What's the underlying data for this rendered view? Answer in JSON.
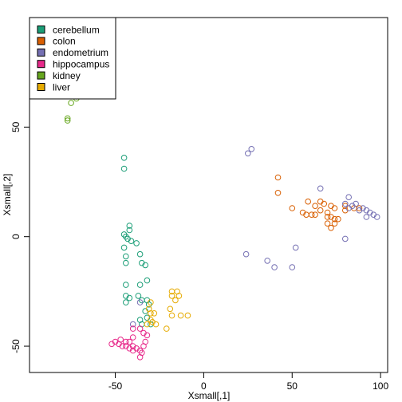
{
  "chart_data": {
    "type": "scatter",
    "xlabel": "Xsmall[,1]",
    "ylabel": "Xsmall[,2]",
    "xlim": [
      -98.5,
      104
    ],
    "ylim": [
      -62,
      100
    ],
    "x_ticks": [
      -50,
      0,
      50,
      100
    ],
    "y_ticks": [
      -50,
      0,
      50
    ],
    "x_tick_labels": [
      "-50",
      "0",
      "50",
      "100"
    ],
    "y_tick_labels": [
      "-50",
      "0",
      "50"
    ],
    "grid": false,
    "legend_position": "top-left",
    "marker": "open-circle",
    "series": [
      {
        "name": "cerebellum",
        "color": "#1B9E77",
        "points": [
          [
            -45,
            36
          ],
          [
            -45,
            31
          ],
          [
            -45,
            1
          ],
          [
            -43,
            -1
          ],
          [
            -44,
            0
          ],
          [
            -41,
            -2
          ],
          [
            -42,
            5
          ],
          [
            -42,
            3
          ],
          [
            -45,
            -5
          ],
          [
            -44,
            -9
          ],
          [
            -44,
            -12
          ],
          [
            -38,
            -3
          ],
          [
            -36,
            -8
          ],
          [
            -35,
            -12
          ],
          [
            -33,
            -13
          ],
          [
            -32,
            -20
          ],
          [
            -36,
            -22
          ],
          [
            -44,
            -22
          ],
          [
            -44,
            -27
          ],
          [
            -44,
            -30
          ],
          [
            -42,
            -28
          ],
          [
            -37,
            -27
          ],
          [
            -35,
            -29
          ],
          [
            -32,
            -29
          ],
          [
            -31,
            -31
          ],
          [
            -33,
            -34
          ],
          [
            -32,
            -37
          ],
          [
            -30,
            -40
          ],
          [
            -36,
            -38
          ],
          [
            -35,
            -40
          ]
        ]
      },
      {
        "name": "colon",
        "color": "#D95F02",
        "points": [
          [
            42,
            27
          ],
          [
            42,
            20
          ],
          [
            50,
            13
          ],
          [
            59,
            16
          ],
          [
            63,
            14
          ],
          [
            63,
            10
          ],
          [
            56,
            11
          ],
          [
            58,
            10
          ],
          [
            61,
            10
          ],
          [
            66,
            16
          ],
          [
            68,
            15
          ],
          [
            66,
            12
          ],
          [
            70,
            11
          ],
          [
            72,
            14
          ],
          [
            74,
            13
          ],
          [
            72,
            9
          ],
          [
            70,
            9
          ],
          [
            74,
            8
          ],
          [
            76,
            8
          ],
          [
            70,
            6
          ],
          [
            72,
            4
          ],
          [
            74,
            6
          ],
          [
            80,
            12
          ],
          [
            80,
            14
          ],
          [
            85,
            13
          ],
          [
            88,
            13
          ]
        ]
      },
      {
        "name": "endometrium",
        "color": "#7570B3",
        "points": [
          [
            25,
            38
          ],
          [
            27,
            40
          ],
          [
            66,
            22
          ],
          [
            82,
            18
          ],
          [
            80,
            15
          ],
          [
            82,
            13
          ],
          [
            84,
            14
          ],
          [
            86,
            15
          ],
          [
            88,
            12
          ],
          [
            90,
            13
          ],
          [
            92,
            12
          ],
          [
            94,
            11
          ],
          [
            96,
            10
          ],
          [
            98,
            9
          ],
          [
            92,
            9
          ],
          [
            80,
            -1
          ],
          [
            52,
            -5
          ],
          [
            24,
            -8
          ],
          [
            36,
            -11
          ],
          [
            40,
            -14
          ],
          [
            50,
            -14
          ],
          [
            -36,
            -30
          ],
          [
            -40,
            -40
          ]
        ]
      },
      {
        "name": "hippocampus",
        "color": "#E7298A",
        "points": [
          [
            -40,
            -42
          ],
          [
            -36,
            -42
          ],
          [
            -34,
            -44
          ],
          [
            -32,
            -45
          ],
          [
            -40,
            -46
          ],
          [
            -42,
            -48
          ],
          [
            -44,
            -48
          ],
          [
            -47,
            -47
          ],
          [
            -48,
            -49
          ],
          [
            -50,
            -48
          ],
          [
            -52,
            -49
          ],
          [
            -46,
            -50
          ],
          [
            -44,
            -50
          ],
          [
            -42,
            -51
          ],
          [
            -40,
            -52
          ],
          [
            -38,
            -51
          ],
          [
            -36,
            -52
          ],
          [
            -35,
            -53
          ],
          [
            -36,
            -55
          ],
          [
            -34,
            -50
          ],
          [
            -33,
            -48
          ],
          [
            -40,
            -50
          ]
        ]
      },
      {
        "name": "kidney",
        "color": "#66A61E",
        "points": [
          [
            -77,
            53
          ],
          [
            -77,
            54
          ],
          [
            -75,
            61
          ],
          [
            -72,
            63
          ],
          [
            -72,
            64
          ]
        ]
      },
      {
        "name": "liver",
        "color": "#E6AB02",
        "points": [
          [
            -30,
            -30
          ],
          [
            -31,
            -33
          ],
          [
            -30,
            -35
          ],
          [
            -28,
            -35
          ],
          [
            -30,
            -38
          ],
          [
            -29,
            -39
          ],
          [
            -32,
            -40
          ],
          [
            -27,
            -40
          ],
          [
            -21,
            -42
          ],
          [
            -19,
            -33
          ],
          [
            -18,
            -36
          ],
          [
            -13,
            -36
          ],
          [
            -9,
            -36
          ],
          [
            -18,
            -27
          ],
          [
            -16,
            -29
          ],
          [
            -14,
            -27
          ],
          [
            -18,
            -25
          ],
          [
            -15,
            -25
          ]
        ]
      }
    ]
  }
}
